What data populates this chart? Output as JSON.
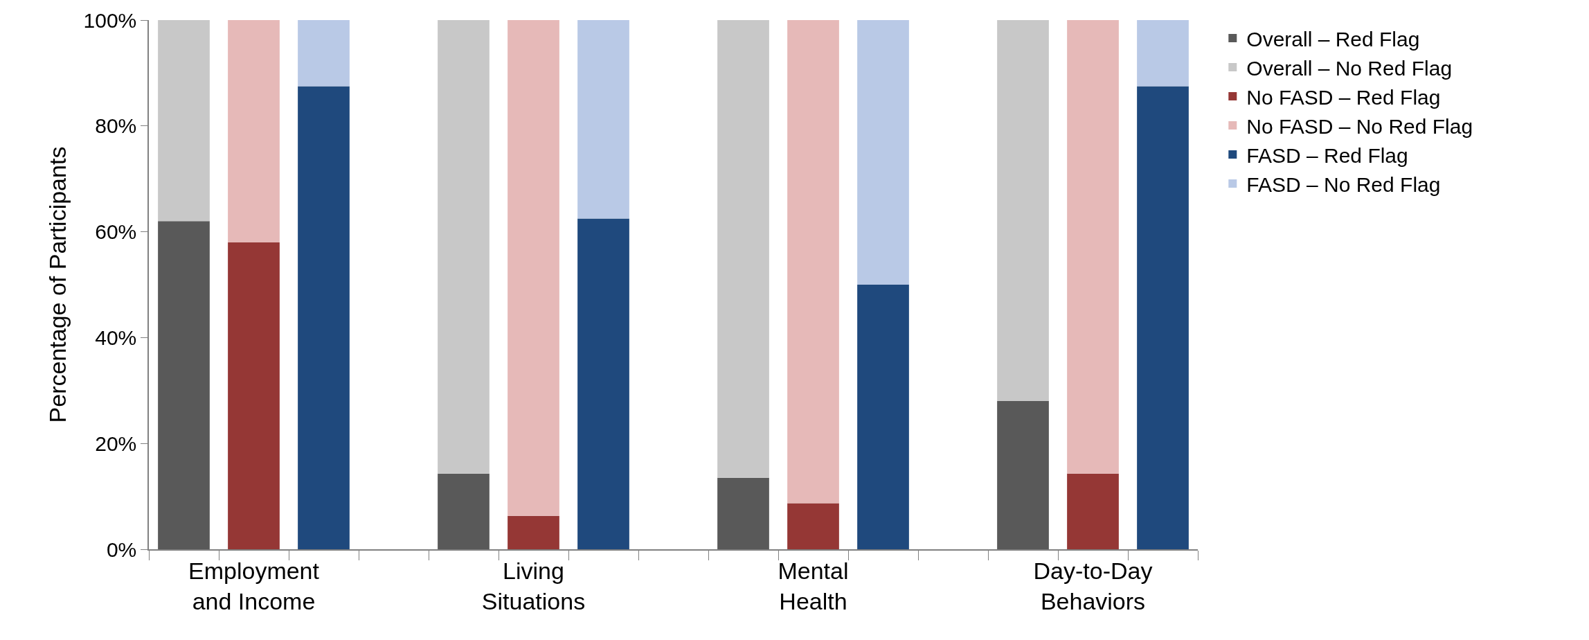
{
  "chart_data": {
    "type": "bar",
    "stacked": true,
    "ylabel": "Percentage of Participants",
    "categories": [
      null,
      "Employment\nand Income",
      null,
      null,
      null,
      "Living\nSituations",
      null,
      null,
      null,
      "Mental\nHealth",
      null,
      null,
      null,
      "Day-to-Day\nBehaviors",
      null
    ],
    "series": [
      {
        "name": "Overall – Red Flag",
        "color": "#595959",
        "values": [
          62,
          null,
          null,
          null,
          14.3,
          null,
          null,
          null,
          13.5,
          null,
          null,
          null,
          28,
          null,
          null
        ]
      },
      {
        "name": "Overall – No Red Flag",
        "color": "#c8c8c8",
        "values": [
          38,
          null,
          null,
          null,
          85.7,
          null,
          null,
          null,
          86.5,
          null,
          null,
          null,
          72,
          null,
          null
        ]
      },
      {
        "name": "No FASD – Red Flag",
        "color": "#953735",
        "values": [
          null,
          58,
          null,
          null,
          null,
          6.3,
          null,
          null,
          null,
          8.7,
          null,
          null,
          null,
          14.3,
          null
        ]
      },
      {
        "name": "No FASD – No Red Flag",
        "color": "#e6b9b8",
        "values": [
          null,
          42,
          null,
          null,
          null,
          93.7,
          null,
          null,
          null,
          91.3,
          null,
          null,
          null,
          85.7,
          null
        ]
      },
      {
        "name": "FASD – Red Flag",
        "color": "#1f497d",
        "values": [
          null,
          null,
          87.5,
          null,
          null,
          null,
          62.5,
          null,
          null,
          null,
          50,
          null,
          null,
          null,
          87.5
        ]
      },
      {
        "name": "FASD – No Red Flag",
        "color": "#b9c9e6",
        "values": [
          null,
          null,
          12.5,
          null,
          null,
          null,
          37.5,
          null,
          null,
          null,
          50,
          null,
          null,
          null,
          12.5
        ]
      }
    ],
    "ylim": [
      0,
      100
    ],
    "yticks": [
      {
        "value": 0,
        "label": "0%"
      },
      {
        "value": 20,
        "label": "20%"
      },
      {
        "value": 40,
        "label": "40%"
      },
      {
        "value": 60,
        "label": "60%"
      },
      {
        "value": 80,
        "label": "80%"
      },
      {
        "value": 100,
        "label": "100%"
      }
    ],
    "legend": "right"
  }
}
